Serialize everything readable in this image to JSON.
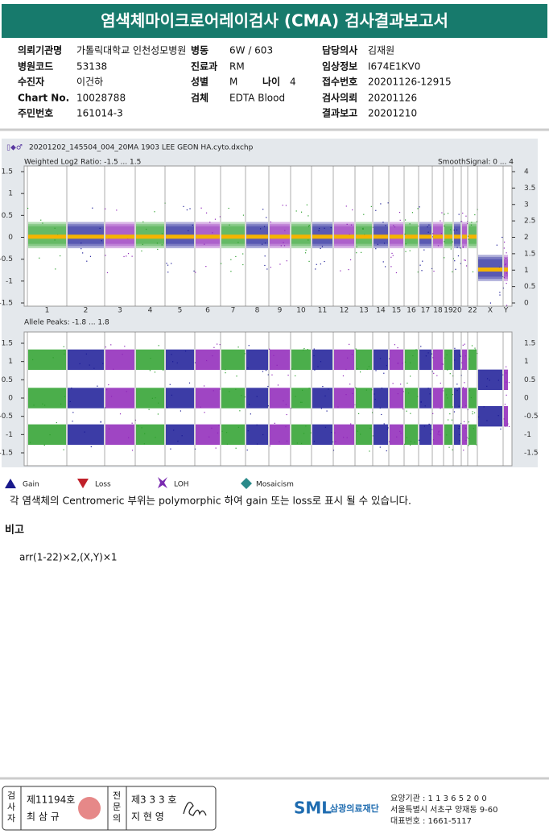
{
  "header": {
    "title": "염색체마이크로어레이검사 (CMA) 검사결과보고서"
  },
  "info": [
    [
      {
        "label": "의뢰기관명",
        "value": "가톨릭대학교 인천성모병원"
      },
      {
        "label": "병동",
        "value": "6W / 603"
      },
      {
        "label": "담당의사",
        "value": "김재원"
      }
    ],
    [
      {
        "label": "병원코드",
        "value": "53138"
      },
      {
        "label": "진료과",
        "value": "RM"
      },
      {
        "label": "임상정보",
        "value": "I674E1KV0"
      }
    ],
    [
      {
        "label": "수진자",
        "value": "이건하"
      },
      {
        "label": "성별",
        "value": "M"
      },
      {
        "label": "접수번호",
        "value": "20201126-12915"
      }
    ],
    [
      {
        "label": "Chart No.",
        "value": "10028788"
      },
      {
        "label": "검체",
        "value": "EDTA Blood"
      },
      {
        "label": "검사의뢰",
        "value": "20201126"
      }
    ],
    [
      {
        "label": "주민번호",
        "value": "161014-3"
      },
      null,
      {
        "label": "결과보고",
        "value": "20201210"
      }
    ]
  ],
  "age": {
    "label": "나이",
    "value": "4"
  },
  "plot": {
    "file": "20201202_145504_004_20MA 1903 LEE GEON HA.cyto.dxchp",
    "top": {
      "label": "Weighted Log2 Ratio: -1.5 ... 1.5",
      "right_label": "SmoothSignal: 0 ... 4",
      "yticks": [
        1.5,
        1,
        0.5,
        0,
        -0.5,
        -1,
        -1.5
      ],
      "y2ticks": [
        4,
        3.5,
        3,
        2.5,
        2,
        1.5,
        1,
        0.5,
        0
      ]
    },
    "bottom": {
      "label": "Allele Peaks: -1.8 ... 1.8",
      "yticks": [
        1.5,
        1,
        0.5,
        0,
        -0.5,
        -1,
        -1.5
      ]
    },
    "chromosomes": [
      "1",
      "2",
      "3",
      "4",
      "5",
      "6",
      "7",
      "8",
      "9",
      "10",
      "11",
      "12",
      "13",
      "14",
      "15",
      "16",
      "17",
      "18",
      "19",
      "20",
      null,
      "22",
      "X",
      "Y"
    ]
  },
  "legend": [
    "Gain",
    "Loss",
    "LOH",
    "Mosaicism"
  ],
  "note": "각 염색체의 Centromeric 부위는 polymorphic 하여 gain 또는 loss로 표시 될 수 있습니다.",
  "remarks": {
    "title": "비고",
    "text": "arr(1-22)×2,(X,Y)×1"
  },
  "footer": {
    "examiner": {
      "role": "검사자",
      "no": "제11194호",
      "name": "최 삼 규"
    },
    "specialist": {
      "role": "전문의",
      "no": "제3 3 3 호",
      "name": "지 현 영"
    },
    "logo": "SML",
    "org": "삼광의료재단",
    "lines": [
      "요양기관 : 1 1 3 6 5 2 0 0",
      "서울특별시 서초구 양재동 9-60",
      "대표번호 : 1661-5117"
    ]
  }
}
